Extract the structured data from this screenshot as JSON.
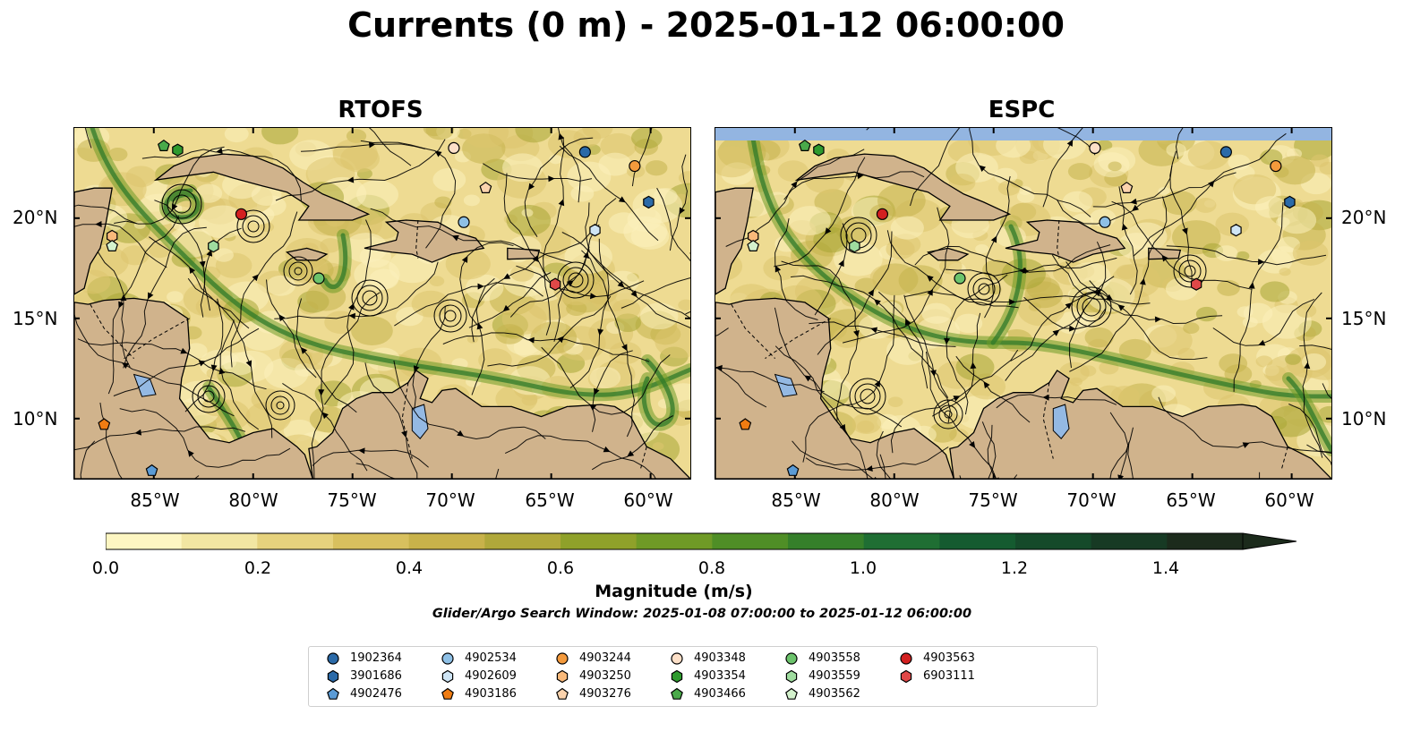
{
  "title": "Currents (0 m) - 2025-01-12 06:00:00",
  "panels": [
    {
      "name": "RTOFS"
    },
    {
      "name": "ESPC"
    }
  ],
  "axes": {
    "lat_labels": [
      "10°N",
      "15°N",
      "20°N"
    ],
    "lon_labels": [
      "85°W",
      "80°W",
      "75°W",
      "70°W",
      "65°W",
      "60°W"
    ]
  },
  "colorbar": {
    "ticks": [
      "0.0",
      "0.2",
      "0.4",
      "0.6",
      "0.8",
      "1.0",
      "1.2",
      "1.4"
    ],
    "label": "Magnitude (m/s)",
    "colors": [
      "#fdf6c2",
      "#f2e6a2",
      "#e6d27d",
      "#d8c05e",
      "#c8b24a",
      "#b0a83a",
      "#8fa12a",
      "#6f9a26",
      "#4f8e26",
      "#357f2a",
      "#1f6e33",
      "#155b30",
      "#154a2a",
      "#173a24",
      "#1c2b1c"
    ]
  },
  "search_window": "Glider/Argo Search Window: 2025-01-08 07:00:00 to 2025-01-12 06:00:00",
  "legend": [
    {
      "id": "1902364",
      "shape": "circle",
      "color": "#2b6aa8"
    },
    {
      "id": "3901686",
      "shape": "hexagon",
      "color": "#2b6aa8"
    },
    {
      "id": "4902476",
      "shape": "pentagon",
      "color": "#5b9bd5"
    },
    {
      "id": "4902534",
      "shape": "circle",
      "color": "#8ec0e6"
    },
    {
      "id": "4902609",
      "shape": "hexagon",
      "color": "#cfe5f5"
    },
    {
      "id": "4903186",
      "shape": "pentagon",
      "color": "#f07c12"
    },
    {
      "id": "4903244",
      "shape": "circle",
      "color": "#f49a3c"
    },
    {
      "id": "4903250",
      "shape": "hexagon",
      "color": "#f9b97a"
    },
    {
      "id": "4903276",
      "shape": "pentagon",
      "color": "#fbd3ad"
    },
    {
      "id": "4903348",
      "shape": "circle",
      "color": "#fde0c8"
    },
    {
      "id": "4903354",
      "shape": "hexagon",
      "color": "#2e9a2e"
    },
    {
      "id": "4903466",
      "shape": "pentagon",
      "color": "#4aaa4a"
    },
    {
      "id": "4903558",
      "shape": "circle",
      "color": "#6cc36c"
    },
    {
      "id": "4903559",
      "shape": "hexagon",
      "color": "#9fdc9f"
    },
    {
      "id": "4903562",
      "shape": "pentagon",
      "color": "#d4f2cd"
    },
    {
      "id": "4903563",
      "shape": "circle",
      "color": "#d32020"
    },
    {
      "id": "6903111",
      "shape": "hexagon",
      "color": "#e04848"
    }
  ],
  "floats": [
    {
      "id": "4903466",
      "lon": -84.5,
      "lat": 23.6
    },
    {
      "id": "4903354",
      "lon": -83.8,
      "lat": 23.4
    },
    {
      "id": "4903348",
      "lon": -69.9,
      "lat": 23.5
    },
    {
      "id": "1902364",
      "lon": -63.3,
      "lat": 23.3
    },
    {
      "id": "4903244",
      "lon": -60.8,
      "lat": 22.6
    },
    {
      "id": "4903276",
      "lon": -68.3,
      "lat": 21.5
    },
    {
      "id": "3901686",
      "lon": -60.1,
      "lat": 20.8
    },
    {
      "id": "4903563",
      "lon": -80.6,
      "lat": 20.2
    },
    {
      "id": "4902534",
      "lon": -69.4,
      "lat": 19.8
    },
    {
      "id": "4902609",
      "lon": -62.8,
      "lat": 19.4
    },
    {
      "id": "4903250",
      "lon": -87.1,
      "lat": 19.1
    },
    {
      "id": "4903559",
      "lon": -82.0,
      "lat": 18.6
    },
    {
      "id": "4903562",
      "lon": -87.1,
      "lat": 18.6
    },
    {
      "id": "4903558",
      "lon": -76.7,
      "lat": 17.0
    },
    {
      "id": "6903111",
      "lon": -64.8,
      "lat": 16.7
    },
    {
      "id": "4903186",
      "lon": -87.5,
      "lat": 9.7
    },
    {
      "id": "4902476",
      "lon": -85.1,
      "lat": 7.4
    }
  ],
  "extent": {
    "lon_min": -89,
    "lon_max": -58,
    "lat_min": 7,
    "lat_max": 24.5
  }
}
